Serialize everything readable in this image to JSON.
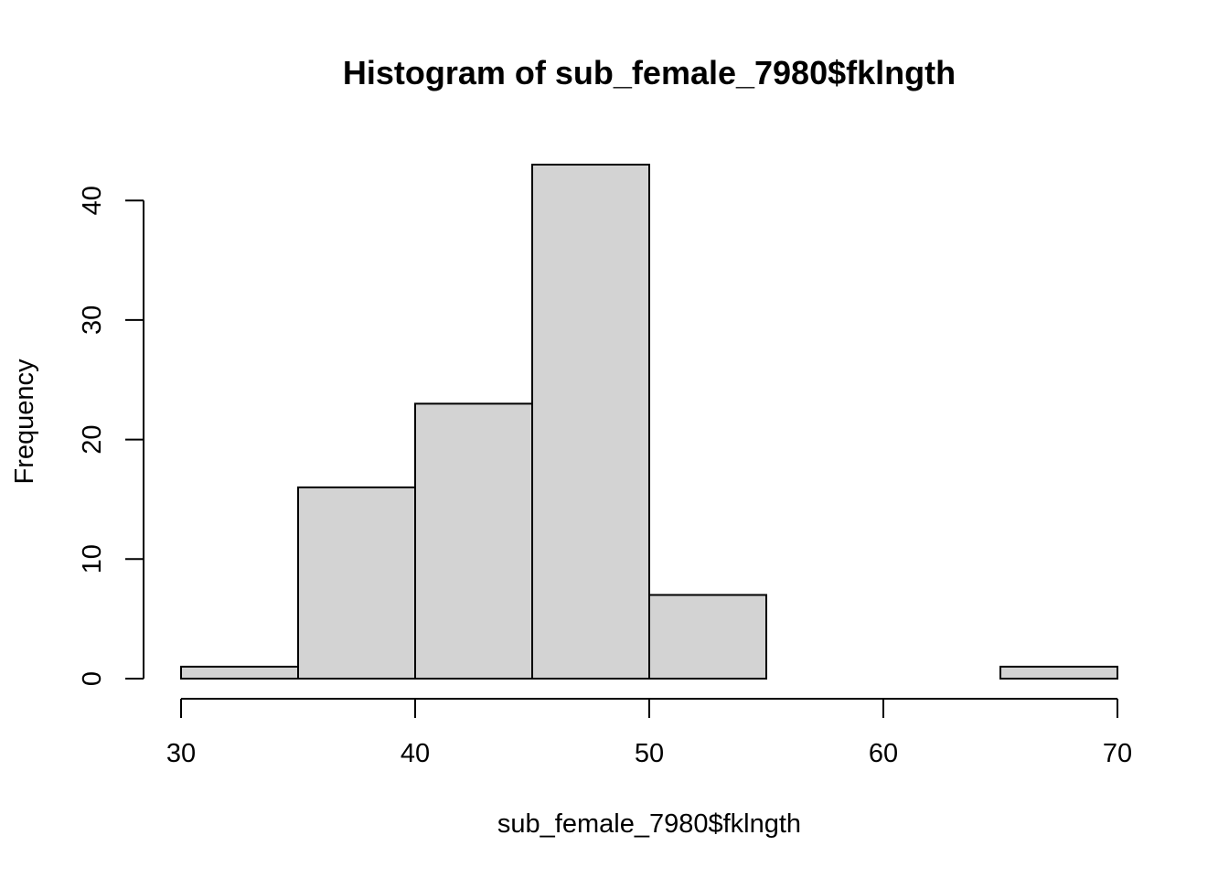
{
  "chart_data": {
    "type": "bar",
    "title": "Histogram of sub_female_7980$fklngth",
    "xlabel": "sub_female_7980$fklngth",
    "ylabel": "Frequency",
    "bins": [
      {
        "x0": 30,
        "x1": 35,
        "count": 1
      },
      {
        "x0": 35,
        "x1": 40,
        "count": 16
      },
      {
        "x0": 40,
        "x1": 45,
        "count": 23
      },
      {
        "x0": 45,
        "x1": 50,
        "count": 43
      },
      {
        "x0": 50,
        "x1": 55,
        "count": 7
      },
      {
        "x0": 55,
        "x1": 60,
        "count": 0
      },
      {
        "x0": 60,
        "x1": 65,
        "count": 0
      },
      {
        "x0": 65,
        "x1": 70,
        "count": 1
      }
    ],
    "xlim": [
      30,
      70
    ],
    "ylim": [
      0,
      43
    ],
    "xticks": [
      30,
      40,
      50,
      60,
      70
    ],
    "yticks": [
      0,
      10,
      20,
      30,
      40
    ],
    "grid": false,
    "bar_color": "#d3d3d3",
    "edge_color": "#000000"
  }
}
